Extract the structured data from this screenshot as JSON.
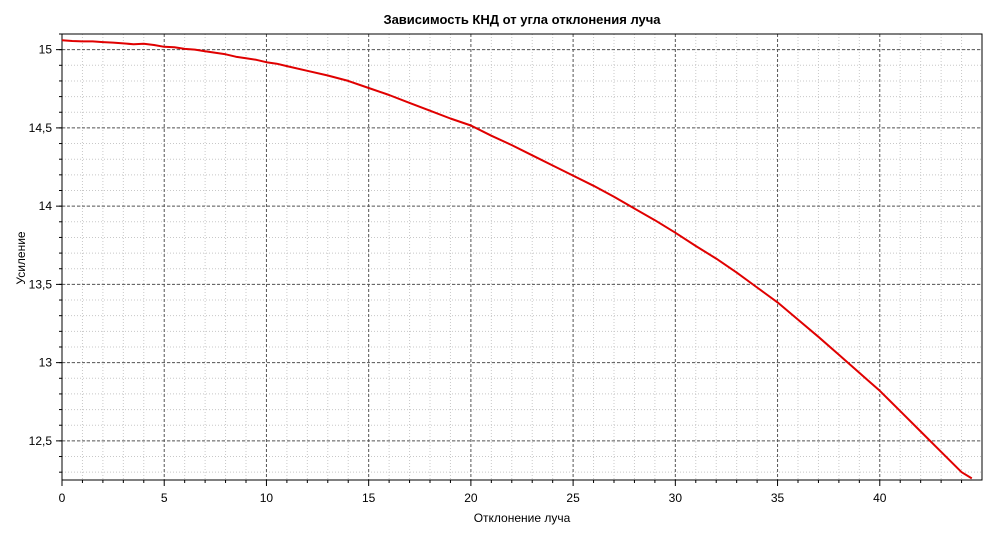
{
  "chart_data": {
    "type": "line",
    "title": "Зависимость КНД от угла отклонения луча",
    "xlabel": "Отклонение луча",
    "ylabel": "Усиление",
    "xlim": [
      0,
      45
    ],
    "ylim": [
      12.25,
      15.1
    ],
    "x_ticks": [
      0,
      5,
      10,
      15,
      20,
      25,
      30,
      35,
      40
    ],
    "x_tick_labels": [
      "0",
      "5",
      "10",
      "15",
      "20",
      "25",
      "30",
      "35",
      "40"
    ],
    "y_ticks": [
      12.5,
      13,
      13.5,
      14,
      14.5,
      15
    ],
    "y_tick_labels": [
      "12,5",
      "13",
      "13,5",
      "14",
      "14,5",
      "15"
    ],
    "grid": true,
    "series": [
      {
        "color": "#e00000",
        "x": [
          0,
          0.5,
          1,
          1.5,
          2,
          2.5,
          3,
          3.5,
          4,
          4.5,
          5,
          5.5,
          6,
          6.5,
          7,
          7.5,
          8,
          8.5,
          9,
          9.5,
          10,
          10.5,
          11,
          12,
          13,
          14,
          15,
          16,
          17,
          18,
          19,
          20,
          21,
          22,
          23,
          24,
          25,
          26,
          27,
          28,
          29,
          30,
          31,
          32,
          33,
          34,
          35,
          36,
          37,
          38,
          39,
          40,
          41,
          42,
          43,
          44,
          44.5
        ],
        "y": [
          15.06,
          15.055,
          15.053,
          15.053,
          15.048,
          15.045,
          15.04,
          15.035,
          15.038,
          15.03,
          15.018,
          15.015,
          15.005,
          15.0,
          14.99,
          14.98,
          14.97,
          14.955,
          14.945,
          14.935,
          14.92,
          14.91,
          14.895,
          14.865,
          14.835,
          14.8,
          14.755,
          14.71,
          14.66,
          14.61,
          14.56,
          14.515,
          14.45,
          14.39,
          14.325,
          14.26,
          14.195,
          14.13,
          14.06,
          13.985,
          13.91,
          13.83,
          13.745,
          13.665,
          13.575,
          13.48,
          13.385,
          13.275,
          13.165,
          13.05,
          12.935,
          12.82,
          12.69,
          12.56,
          12.43,
          12.3,
          12.26
        ]
      }
    ]
  }
}
